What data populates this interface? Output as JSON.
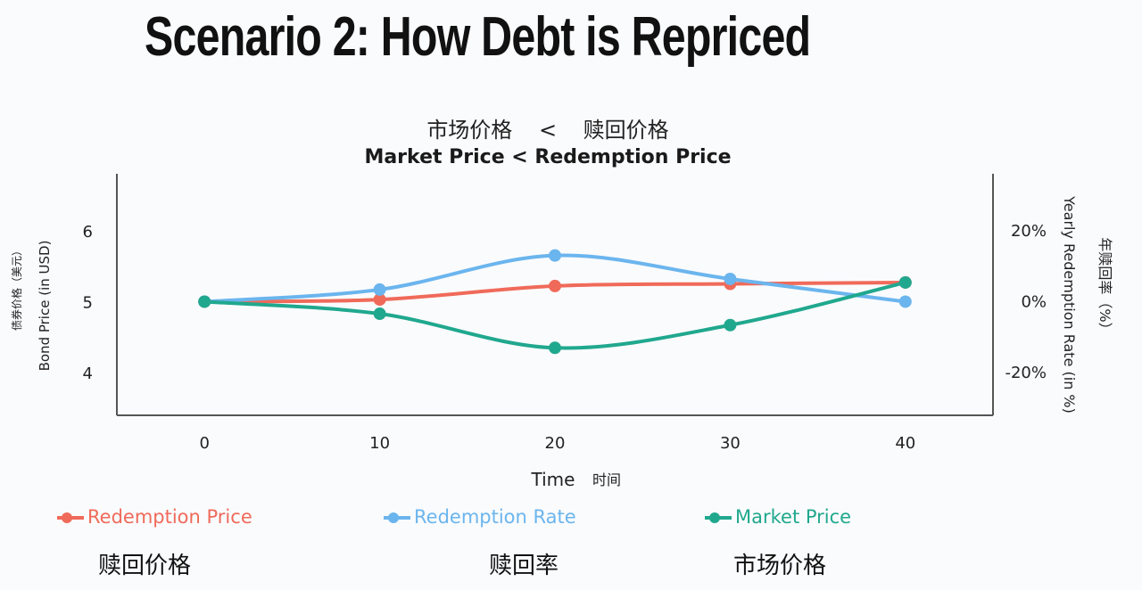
{
  "headline": "Scenario 2: How Debt is Repriced",
  "subtitle_cn": "市场价格 < 赎回价格",
  "chart_data": {
    "type": "line",
    "title": "Market Price < Redemption Price",
    "x": [
      0,
      10,
      20,
      30,
      40
    ],
    "xlim": [
      -5,
      45
    ],
    "xlabel": "Time",
    "xlabel_cn": "时间",
    "ylabel": "Bond Price (in USD)",
    "ylabel_cn": "债券价格（美元）",
    "ylim": [
      3.4,
      6.8
    ],
    "yticks": [
      4,
      5,
      6
    ],
    "y2label": "Yearly Redemption Rate (in %)",
    "y2label_cn": "年赎回率（%）",
    "y2ticks": [
      "20%",
      "0%",
      "-20%"
    ],
    "legend_position": "bottom",
    "grid": false,
    "series": [
      {
        "name": "Redemption Price",
        "name_cn": "赎回价格",
        "color": "#f06a5a",
        "values": [
          5.0,
          5.03,
          5.22,
          5.25,
          5.27
        ]
      },
      {
        "name": "Redemption Rate",
        "name_cn": "赎回率",
        "color": "#6bb5ee",
        "values": [
          5.0,
          5.17,
          5.65,
          5.32,
          5.0
        ]
      },
      {
        "name": "Market Price",
        "name_cn": "市场价格",
        "color": "#20a88e",
        "values": [
          5.0,
          4.83,
          4.35,
          4.67,
          5.27
        ]
      }
    ]
  }
}
